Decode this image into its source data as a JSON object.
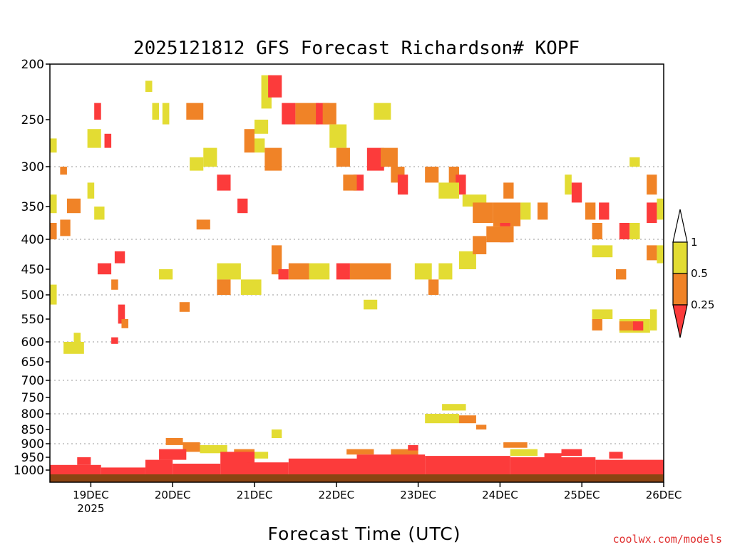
{
  "chart_data": {
    "type": "heatmap",
    "title": "2025121812 GFS Forecast Richardson# KOPF",
    "xlabel": "Forecast Time (UTC)",
    "ylabel": "",
    "credit": "coolwx.com/models",
    "x_ticks": [
      {
        "label": "19DEC",
        "sub": "2025",
        "t": 12
      },
      {
        "label": "20DEC",
        "t": 36
      },
      {
        "label": "21DEC",
        "t": 60
      },
      {
        "label": "22DEC",
        "t": 84
      },
      {
        "label": "23DEC",
        "t": 108
      },
      {
        "label": "24DEC",
        "t": 132
      },
      {
        "label": "25DEC",
        "t": 156
      },
      {
        "label": "26DEC",
        "t": 180
      }
    ],
    "xlim_hours": [
      0,
      180
    ],
    "y_ticks": [
      200,
      250,
      300,
      350,
      400,
      450,
      500,
      550,
      600,
      650,
      700,
      750,
      800,
      850,
      900,
      950,
      1000
    ],
    "y_tick_labels": [
      "200",
      "250",
      "300",
      "350",
      "400",
      "450",
      "500",
      "550",
      "600",
      "650",
      "700",
      "750",
      "800",
      "850",
      "900",
      "950",
      "1000"
    ],
    "y_gridlines": [
      300,
      400,
      500,
      600,
      700,
      800,
      900
    ],
    "ylim_hpa": [
      200,
      1025
    ],
    "colorbar": {
      "labels": [
        "1",
        "0.5",
        "0.25"
      ],
      "bins": [
        {
          "range": "0.5-1",
          "color": "#e3dc33"
        },
        {
          "range": "0.25-0.5",
          "color": "#f08327"
        },
        {
          "range": "<0.25",
          "color": "#fc3b3b"
        }
      ]
    },
    "colors": {
      "yellow": "#e3dc33",
      "orange": "#f08327",
      "red": "#fc3b3b",
      "ground": "#8b4513"
    },
    "patches": [
      {
        "t0": 0,
        "t1": 2,
        "p0": 270,
        "p1": 285,
        "c": "yellow"
      },
      {
        "t0": 0,
        "t1": 2,
        "p0": 335,
        "p1": 360,
        "c": "yellow"
      },
      {
        "t0": 0,
        "t1": 2,
        "p0": 375,
        "p1": 400,
        "c": "orange"
      },
      {
        "t0": 0,
        "t1": 2,
        "p0": 480,
        "p1": 520,
        "c": "yellow"
      },
      {
        "t0": 3,
        "t1": 5,
        "p0": 300,
        "p1": 310,
        "c": "orange"
      },
      {
        "t0": 3,
        "t1": 6,
        "p0": 370,
        "p1": 395,
        "c": "orange"
      },
      {
        "t0": 5,
        "t1": 9,
        "p0": 340,
        "p1": 360,
        "c": "orange"
      },
      {
        "t0": 4,
        "t1": 10,
        "p0": 600,
        "p1": 630,
        "c": "yellow"
      },
      {
        "t0": 7,
        "t1": 9,
        "p0": 580,
        "p1": 600,
        "c": "yellow"
      },
      {
        "t0": 11,
        "t1": 13,
        "p0": 320,
        "p1": 340,
        "c": "yellow"
      },
      {
        "t0": 11,
        "t1": 15,
        "p0": 260,
        "p1": 280,
        "c": "yellow"
      },
      {
        "t0": 13,
        "t1": 15,
        "p0": 235,
        "p1": 250,
        "c": "red"
      },
      {
        "t0": 16,
        "t1": 18,
        "p0": 265,
        "p1": 280,
        "c": "red"
      },
      {
        "t0": 13,
        "t1": 16,
        "p0": 350,
        "p1": 370,
        "c": "yellow"
      },
      {
        "t0": 14,
        "t1": 18,
        "p0": 440,
        "p1": 460,
        "c": "red"
      },
      {
        "t0": 18,
        "t1": 20,
        "p0": 470,
        "p1": 490,
        "c": "orange"
      },
      {
        "t0": 19,
        "t1": 22,
        "p0": 420,
        "p1": 440,
        "c": "red"
      },
      {
        "t0": 20,
        "t1": 22,
        "p0": 520,
        "p1": 560,
        "c": "red"
      },
      {
        "t0": 21,
        "t1": 23,
        "p0": 550,
        "p1": 570,
        "c": "orange"
      },
      {
        "t0": 18,
        "t1": 20,
        "p0": 590,
        "p1": 605,
        "c": "red"
      },
      {
        "t0": 28,
        "t1": 30,
        "p0": 215,
        "p1": 225,
        "c": "yellow"
      },
      {
        "t0": 30,
        "t1": 32,
        "p0": 235,
        "p1": 250,
        "c": "yellow"
      },
      {
        "t0": 33,
        "t1": 35,
        "p0": 235,
        "p1": 255,
        "c": "yellow"
      },
      {
        "t0": 32,
        "t1": 36,
        "p0": 450,
        "p1": 470,
        "c": "yellow"
      },
      {
        "t0": 38,
        "t1": 41,
        "p0": 515,
        "p1": 535,
        "c": "orange"
      },
      {
        "t0": 40,
        "t1": 45,
        "p0": 235,
        "p1": 250,
        "c": "orange"
      },
      {
        "t0": 41,
        "t1": 45,
        "p0": 290,
        "p1": 305,
        "c": "yellow"
      },
      {
        "t0": 43,
        "t1": 47,
        "p0": 370,
        "p1": 385,
        "c": "orange"
      },
      {
        "t0": 45,
        "t1": 49,
        "p0": 280,
        "p1": 300,
        "c": "yellow"
      },
      {
        "t0": 49,
        "t1": 53,
        "p0": 310,
        "p1": 330,
        "c": "red"
      },
      {
        "t0": 49,
        "t1": 56,
        "p0": 440,
        "p1": 470,
        "c": "yellow"
      },
      {
        "t0": 49,
        "t1": 53,
        "p0": 470,
        "p1": 500,
        "c": "orange"
      },
      {
        "t0": 55,
        "t1": 58,
        "p0": 340,
        "p1": 360,
        "c": "red"
      },
      {
        "t0": 56,
        "t1": 62,
        "p0": 470,
        "p1": 500,
        "c": "yellow"
      },
      {
        "t0": 57,
        "t1": 60,
        "p0": 260,
        "p1": 285,
        "c": "orange"
      },
      {
        "t0": 60,
        "t1": 63,
        "p0": 270,
        "p1": 285,
        "c": "yellow"
      },
      {
        "t0": 62,
        "t1": 65,
        "p0": 210,
        "p1": 240,
        "c": "yellow"
      },
      {
        "t0": 64,
        "t1": 68,
        "p0": 210,
        "p1": 230,
        "c": "red"
      },
      {
        "t0": 63,
        "t1": 68,
        "p0": 280,
        "p1": 305,
        "c": "orange"
      },
      {
        "t0": 60,
        "t1": 64,
        "p0": 250,
        "p1": 265,
        "c": "yellow"
      },
      {
        "t0": 65,
        "t1": 68,
        "p0": 410,
        "p1": 460,
        "c": "orange"
      },
      {
        "t0": 67,
        "t1": 70,
        "p0": 450,
        "p1": 470,
        "c": "red"
      },
      {
        "t0": 68,
        "t1": 72,
        "p0": 235,
        "p1": 255,
        "c": "red"
      },
      {
        "t0": 72,
        "t1": 79,
        "p0": 235,
        "p1": 255,
        "c": "orange"
      },
      {
        "t0": 70,
        "t1": 76,
        "p0": 440,
        "p1": 470,
        "c": "orange"
      },
      {
        "t0": 76,
        "t1": 82,
        "p0": 440,
        "p1": 470,
        "c": "yellow"
      },
      {
        "t0": 78,
        "t1": 82,
        "p0": 235,
        "p1": 255,
        "c": "red"
      },
      {
        "t0": 80,
        "t1": 84,
        "p0": 235,
        "p1": 255,
        "c": "orange"
      },
      {
        "t0": 82,
        "t1": 87,
        "p0": 255,
        "p1": 280,
        "c": "yellow"
      },
      {
        "t0": 84,
        "t1": 88,
        "p0": 280,
        "p1": 300,
        "c": "orange"
      },
      {
        "t0": 84,
        "t1": 88,
        "p0": 440,
        "p1": 470,
        "c": "red"
      },
      {
        "t0": 88,
        "t1": 100,
        "p0": 440,
        "p1": 470,
        "c": "orange"
      },
      {
        "t0": 89,
        "t1": 92,
        "p0": 310,
        "p1": 330,
        "c": "red"
      },
      {
        "t0": 86,
        "t1": 90,
        "p0": 310,
        "p1": 330,
        "c": "orange"
      },
      {
        "t0": 93,
        "t1": 98,
        "p0": 280,
        "p1": 305,
        "c": "red"
      },
      {
        "t0": 97,
        "t1": 102,
        "p0": 280,
        "p1": 300,
        "c": "orange"
      },
      {
        "t0": 95,
        "t1": 100,
        "p0": 235,
        "p1": 250,
        "c": "yellow"
      },
      {
        "t0": 100,
        "t1": 104,
        "p0": 300,
        "p1": 320,
        "c": "orange"
      },
      {
        "t0": 102,
        "t1": 105,
        "p0": 310,
        "p1": 335,
        "c": "red"
      },
      {
        "t0": 92,
        "t1": 96,
        "p0": 510,
        "p1": 530,
        "c": "yellow"
      },
      {
        "t0": 107,
        "t1": 112,
        "p0": 440,
        "p1": 470,
        "c": "yellow"
      },
      {
        "t0": 110,
        "t1": 114,
        "p0": 300,
        "p1": 320,
        "c": "orange"
      },
      {
        "t0": 111,
        "t1": 114,
        "p0": 470,
        "p1": 500,
        "c": "orange"
      },
      {
        "t0": 117,
        "t1": 120,
        "p0": 300,
        "p1": 330,
        "c": "orange"
      },
      {
        "t0": 119,
        "t1": 122,
        "p0": 310,
        "p1": 335,
        "c": "red"
      },
      {
        "t0": 114,
        "t1": 120,
        "p0": 320,
        "p1": 340,
        "c": "yellow"
      },
      {
        "t0": 114,
        "t1": 118,
        "p0": 440,
        "p1": 470,
        "c": "yellow"
      },
      {
        "t0": 120,
        "t1": 125,
        "p0": 420,
        "p1": 450,
        "c": "yellow"
      },
      {
        "t0": 121,
        "t1": 128,
        "p0": 335,
        "p1": 350,
        "c": "yellow"
      },
      {
        "t0": 124,
        "t1": 130,
        "p0": 345,
        "p1": 375,
        "c": "orange"
      },
      {
        "t0": 124,
        "t1": 128,
        "p0": 395,
        "p1": 425,
        "c": "orange"
      },
      {
        "t0": 130,
        "t1": 138,
        "p0": 345,
        "p1": 380,
        "c": "orange"
      },
      {
        "t0": 132,
        "t1": 135,
        "p0": 375,
        "p1": 405,
        "c": "red"
      },
      {
        "t0": 128,
        "t1": 136,
        "p0": 380,
        "p1": 405,
        "c": "orange"
      },
      {
        "t0": 138,
        "t1": 141,
        "p0": 345,
        "p1": 370,
        "c": "yellow"
      },
      {
        "t0": 133,
        "t1": 136,
        "p0": 320,
        "p1": 340,
        "c": "orange"
      },
      {
        "t0": 143,
        "t1": 146,
        "p0": 345,
        "p1": 370,
        "c": "orange"
      },
      {
        "t0": 151,
        "t1": 153,
        "p0": 310,
        "p1": 335,
        "c": "yellow"
      },
      {
        "t0": 153,
        "t1": 156,
        "p0": 320,
        "p1": 345,
        "c": "red"
      },
      {
        "t0": 157,
        "t1": 160,
        "p0": 345,
        "p1": 370,
        "c": "orange"
      },
      {
        "t0": 161,
        "t1": 164,
        "p0": 345,
        "p1": 370,
        "c": "red"
      },
      {
        "t0": 159,
        "t1": 162,
        "p0": 375,
        "p1": 400,
        "c": "orange"
      },
      {
        "t0": 159,
        "t1": 165,
        "p0": 410,
        "p1": 430,
        "c": "yellow"
      },
      {
        "t0": 167,
        "t1": 170,
        "p0": 375,
        "p1": 400,
        "c": "red"
      },
      {
        "t0": 170,
        "t1": 173,
        "p0": 290,
        "p1": 300,
        "c": "yellow"
      },
      {
        "t0": 170,
        "t1": 173,
        "p0": 375,
        "p1": 400,
        "c": "yellow"
      },
      {
        "t0": 175,
        "t1": 178,
        "p0": 310,
        "p1": 335,
        "c": "orange"
      },
      {
        "t0": 175,
        "t1": 178,
        "p0": 345,
        "p1": 375,
        "c": "red"
      },
      {
        "t0": 175,
        "t1": 178,
        "p0": 410,
        "p1": 435,
        "c": "orange"
      },
      {
        "t0": 178,
        "t1": 180,
        "p0": 340,
        "p1": 370,
        "c": "yellow"
      },
      {
        "t0": 178,
        "t1": 180,
        "p0": 410,
        "p1": 440,
        "c": "yellow"
      },
      {
        "t0": 166,
        "t1": 169,
        "p0": 450,
        "p1": 470,
        "c": "orange"
      },
      {
        "t0": 159,
        "t1": 165,
        "p0": 530,
        "p1": 550,
        "c": "yellow"
      },
      {
        "t0": 159,
        "t1": 162,
        "p0": 550,
        "p1": 575,
        "c": "orange"
      },
      {
        "t0": 167,
        "t1": 176,
        "p0": 550,
        "p1": 580,
        "c": "yellow"
      },
      {
        "t0": 167,
        "t1": 172,
        "p0": 555,
        "p1": 575,
        "c": "orange"
      },
      {
        "t0": 171,
        "t1": 174,
        "p0": 555,
        "p1": 575,
        "c": "red"
      },
      {
        "t0": 176,
        "t1": 178,
        "p0": 530,
        "p1": 575,
        "c": "yellow"
      },
      {
        "t0": 110,
        "t1": 120,
        "p0": 800,
        "p1": 830,
        "c": "yellow"
      },
      {
        "t0": 115,
        "t1": 122,
        "p0": 770,
        "p1": 790,
        "c": "yellow"
      },
      {
        "t0": 120,
        "t1": 125,
        "p0": 805,
        "p1": 830,
        "c": "orange"
      },
      {
        "t0": 125,
        "t1": 128,
        "p0": 835,
        "p1": 850,
        "c": "orange"
      },
      {
        "t0": 133,
        "t1": 140,
        "p0": 895,
        "p1": 915,
        "c": "orange"
      },
      {
        "t0": 34,
        "t1": 39,
        "p0": 880,
        "p1": 905,
        "c": "orange"
      },
      {
        "t0": 39,
        "t1": 44,
        "p0": 895,
        "p1": 930,
        "c": "orange"
      },
      {
        "t0": 44,
        "t1": 52,
        "p0": 905,
        "p1": 935,
        "c": "yellow"
      },
      {
        "t0": 54,
        "t1": 60,
        "p0": 920,
        "p1": 950,
        "c": "orange"
      },
      {
        "t0": 60,
        "t1": 64,
        "p0": 930,
        "p1": 955,
        "c": "yellow"
      },
      {
        "t0": 65,
        "t1": 68,
        "p0": 850,
        "p1": 880,
        "c": "yellow"
      },
      {
        "t0": 87,
        "t1": 95,
        "p0": 920,
        "p1": 940,
        "c": "orange"
      },
      {
        "t0": 100,
        "t1": 108,
        "p0": 920,
        "p1": 950,
        "c": "orange"
      },
      {
        "t0": 105,
        "t1": 108,
        "p0": 905,
        "p1": 925,
        "c": "red"
      },
      {
        "t0": 135,
        "t1": 143,
        "p0": 920,
        "p1": 945,
        "c": "yellow"
      },
      {
        "t0": 145,
        "t1": 150,
        "p0": 935,
        "p1": 955,
        "c": "red"
      },
      {
        "t0": 150,
        "t1": 156,
        "p0": 920,
        "p1": 945,
        "c": "red"
      },
      {
        "t0": 164,
        "t1": 168,
        "p0": 930,
        "p1": 955,
        "c": "red"
      },
      {
        "t0": 0,
        "t1": 15,
        "p0": 980,
        "p1": 1015,
        "c": "red"
      },
      {
        "t0": 8,
        "t1": 12,
        "p0": 950,
        "p1": 980,
        "c": "red"
      },
      {
        "t0": 15,
        "t1": 28,
        "p0": 990,
        "p1": 1015,
        "c": "red"
      },
      {
        "t0": 28,
        "t1": 36,
        "p0": 960,
        "p1": 1015,
        "c": "red"
      },
      {
        "t0": 32,
        "t1": 40,
        "p0": 920,
        "p1": 960,
        "c": "red"
      },
      {
        "t0": 36,
        "t1": 50,
        "p0": 975,
        "p1": 1015,
        "c": "red"
      },
      {
        "t0": 50,
        "t1": 60,
        "p0": 930,
        "p1": 1015,
        "c": "red"
      },
      {
        "t0": 58,
        "t1": 70,
        "p0": 970,
        "p1": 1015,
        "c": "red"
      },
      {
        "t0": 70,
        "t1": 90,
        "p0": 955,
        "p1": 1015,
        "c": "red"
      },
      {
        "t0": 90,
        "t1": 110,
        "p0": 940,
        "p1": 1015,
        "c": "red"
      },
      {
        "t0": 110,
        "t1": 135,
        "p0": 945,
        "p1": 1015,
        "c": "red"
      },
      {
        "t0": 135,
        "t1": 160,
        "p0": 950,
        "p1": 1015,
        "c": "red"
      },
      {
        "t0": 160,
        "t1": 180,
        "p0": 960,
        "p1": 1015,
        "c": "red"
      }
    ]
  }
}
